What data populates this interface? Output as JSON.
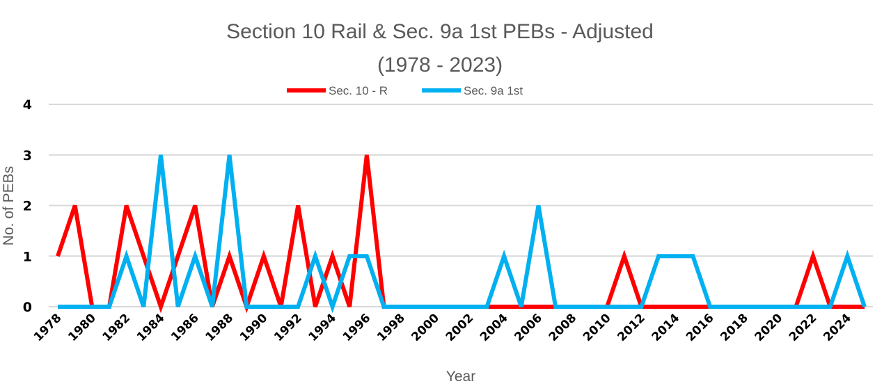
{
  "chart_data": {
    "type": "line",
    "title_line1": "Section 10 Rail & Sec. 9a 1st PEBs - Adjusted",
    "title_line2": "(1978 - 2023)",
    "xlabel": "Year",
    "ylabel": "No. of PEBs",
    "ylim": [
      0,
      4
    ],
    "yticks": [
      "0",
      "1",
      "2",
      "3",
      "4"
    ],
    "grid": true,
    "legend_position": "top-center",
    "x": [
      1978,
      1979,
      1980,
      1981,
      1982,
      1983,
      1984,
      1985,
      1986,
      1987,
      1988,
      1989,
      1990,
      1991,
      1992,
      1993,
      1994,
      1995,
      1996,
      1997,
      1998,
      1999,
      2000,
      2001,
      2002,
      2003,
      2004,
      2005,
      2006,
      2007,
      2008,
      2009,
      2010,
      2011,
      2012,
      2013,
      2014,
      2015,
      2016,
      2017,
      2018,
      2019,
      2020,
      2021,
      2022,
      2023,
      2024,
      2025
    ],
    "xtick_labels": [
      "1978",
      "1980",
      "1982",
      "1984",
      "1986",
      "1988",
      "1990",
      "1992",
      "1994",
      "1996",
      "1998",
      "2000",
      "2002",
      "2004",
      "2006",
      "2008",
      "2010",
      "2012",
      "2014",
      "2016",
      "2018",
      "2020",
      "2022",
      "2024"
    ],
    "series": [
      {
        "name": "Sec. 10 - R",
        "color": "#ff0000",
        "values": [
          1,
          2,
          0,
          0,
          2,
          1,
          0,
          1,
          2,
          0,
          1,
          0,
          1,
          0,
          2,
          0,
          1,
          0,
          3,
          0,
          0,
          0,
          0,
          0,
          0,
          0,
          0,
          0,
          0,
          0,
          0,
          0,
          0,
          1,
          0,
          0,
          0,
          0,
          0,
          0,
          0,
          0,
          0,
          0,
          1,
          0,
          0,
          0
        ]
      },
      {
        "name": "Sec. 9a 1st",
        "color": "#00b0f0",
        "values": [
          0,
          0,
          0,
          0,
          1,
          0,
          3,
          0,
          1,
          0,
          3,
          0,
          0,
          0,
          0,
          1,
          0,
          1,
          1,
          0,
          0,
          0,
          0,
          0,
          0,
          0,
          1,
          0,
          2,
          0,
          0,
          0,
          0,
          0,
          0,
          1,
          1,
          1,
          0,
          0,
          0,
          0,
          0,
          0,
          0,
          0,
          1,
          0
        ]
      }
    ]
  }
}
